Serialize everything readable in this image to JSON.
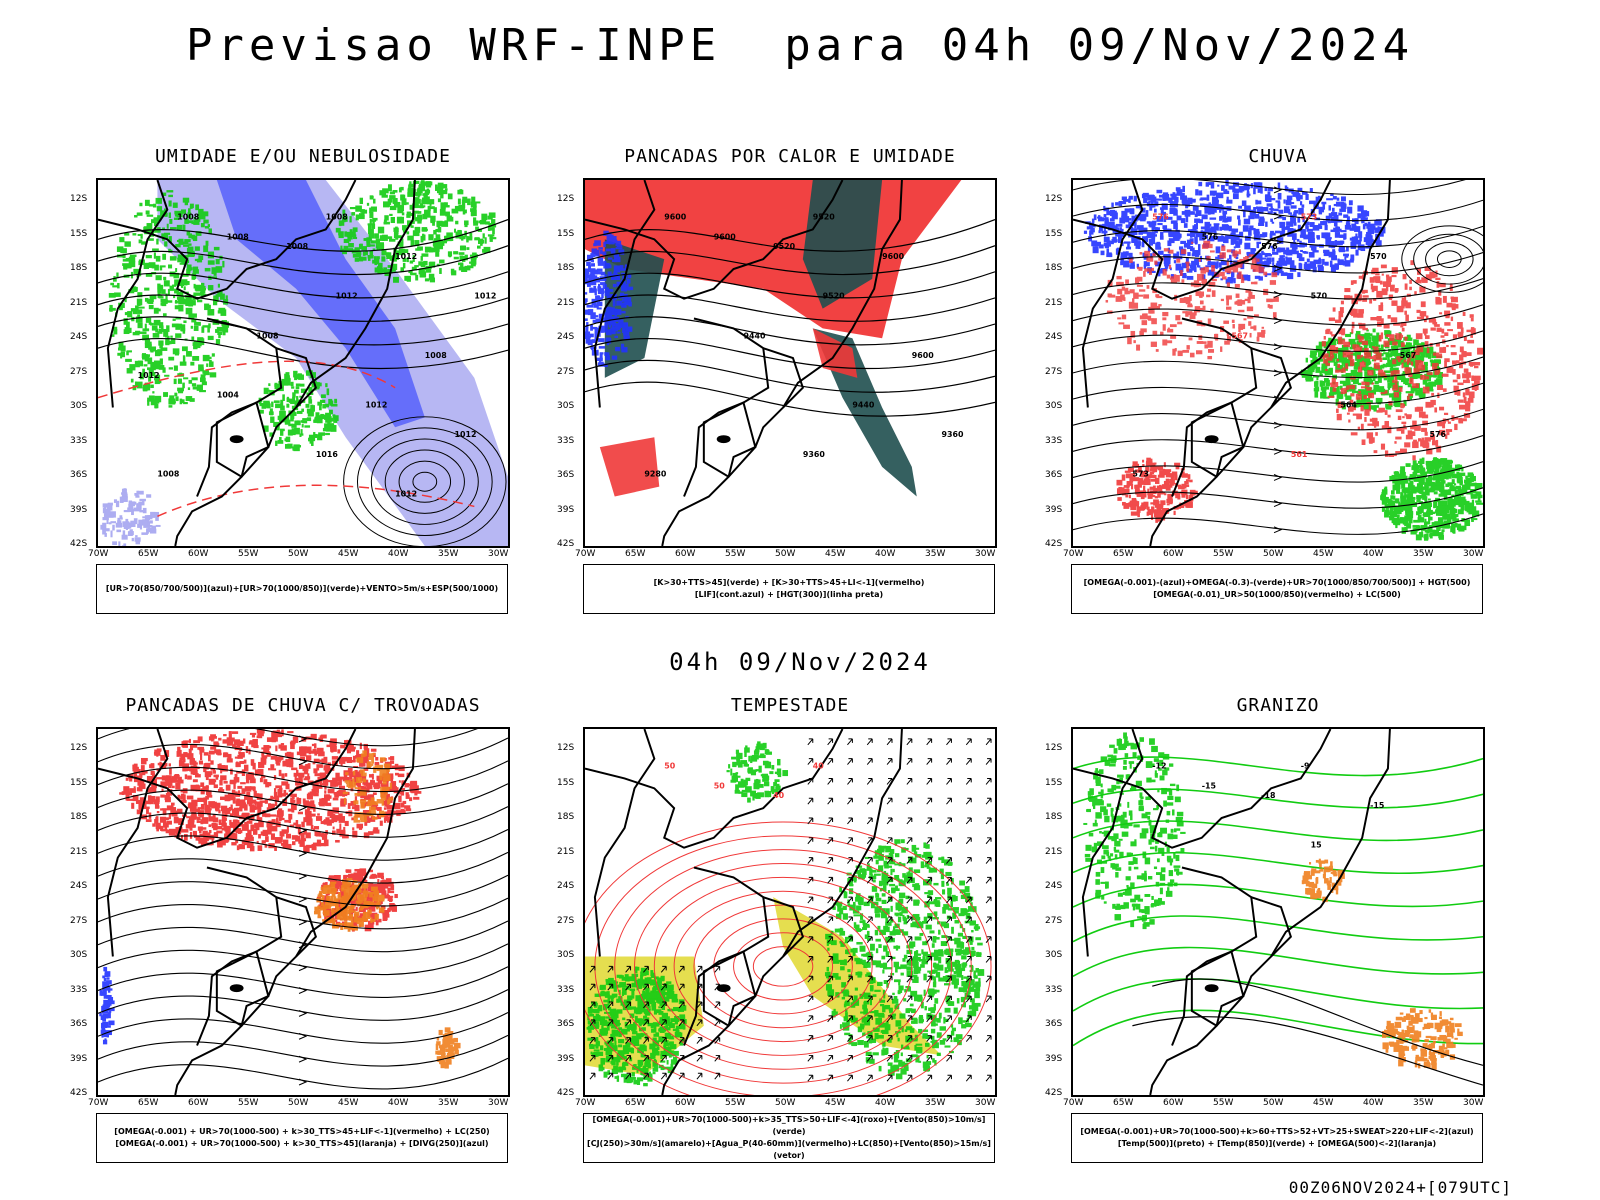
{
  "header": {
    "title": "Previsao WRF-INPE  para 04h 09/Nov/2024",
    "subtitle": "04h 09/Nov/2024",
    "footer": "00Z06NOV2024+[079UTC]"
  },
  "axes": {
    "lat_labels": [
      "12S",
      "15S",
      "18S",
      "21S",
      "24S",
      "27S",
      "30S",
      "33S",
      "36S",
      "39S",
      "42S"
    ],
    "lon_labels": [
      "70W",
      "65W",
      "60W",
      "55W",
      "50W",
      "45W",
      "40W",
      "35W",
      "30W"
    ]
  },
  "colors": {
    "blue": "#2233ff",
    "light_blue": "#9999ee",
    "green": "#11cc11",
    "red": "#f03838",
    "dark_teal": "#1f4f4f",
    "orange": "#f08020",
    "yellow": "#e0d830"
  },
  "panels": [
    {
      "title": "UMIDADE E/OU NEBULOSIDADE",
      "legend": [
        "[UR>70(850/700/500)](azul)+[UR>70(1000/850)](verde)+VENTO>5m/s+ESP(500/1000)"
      ],
      "contour_labels": [
        "1008",
        "1008",
        "1008",
        "1008",
        "1012",
        "1012",
        "1008",
        "1008",
        "1012",
        "1016",
        "1012",
        "1008",
        "1004",
        "1012",
        "1012",
        "1012"
      ]
    },
    {
      "title": "PANCADAS POR CALOR E UMIDADE",
      "legend": [
        "[K>30+TTS>45](verde) + [K>30+TTS>45+LI<-1](vermelho)",
        "[LIF](cont.azul) + [HGT(300)](linha preta)"
      ],
      "contour_labels": [
        "9600",
        "9600",
        "9520",
        "9520",
        "9600",
        "9520",
        "9440",
        "9600",
        "9440",
        "9360",
        "9360",
        "9280"
      ]
    },
    {
      "title": "CHUVA",
      "legend": [
        "[OMEGA(-0.001)-(azul)+OMEGA(-0.3)-(verde)+UR>70(1000/850/700/500)] + HGT(500)",
        "[OMEGA(-0.01)_UR>50(1000/850)(vermelho) + LC(500)"
      ],
      "contour_labels": [
        "576",
        "576",
        "576",
        "573",
        "570",
        "570",
        "567",
        "567",
        "564",
        "561",
        "576",
        "573"
      ]
    },
    {
      "title": "PANCADAS DE CHUVA C/ TROVOADAS",
      "legend": [
        "[OMEGA(-0.001) + UR>70(1000-500) + k>30_TTS>45+LIF<-1](vermelho) + LC(250)",
        "[OMEGA(-0.001) + UR>70(1000-500) + k>30_TTS>45](laranja) + [DIVG(250)](azul)"
      ],
      "contour_labels": []
    },
    {
      "title": "TEMPESTADE",
      "legend": [
        "[OMEGA(-0.001)+UR>70(1000-500)+k>35_TTS>50+LIF<-4](roxo)+[Vento(850)>10m/s](verde)",
        "[CJ(250)>30m/s](amarelo)+[Agua_P(40-60mm)](vermelho)+LC(850)+[Vento(850)>15m/s](vetor)"
      ],
      "contour_labels": [
        "50",
        "50",
        "40",
        "40"
      ]
    },
    {
      "title": "GRANIZO",
      "legend": [
        "[OMEGA(-0.001)+UR>70(1000-500)+k>60+TTS>52+VT>25+SWEAT>220+LIF<-2](azul)",
        "[Temp(500)](preto) + [Temp(850)](verde) + [OMEGA(500)<-2](laranja)"
      ],
      "contour_labels": [
        "-12",
        "-15",
        "-18",
        "-9",
        "-15",
        "15"
      ]
    }
  ]
}
